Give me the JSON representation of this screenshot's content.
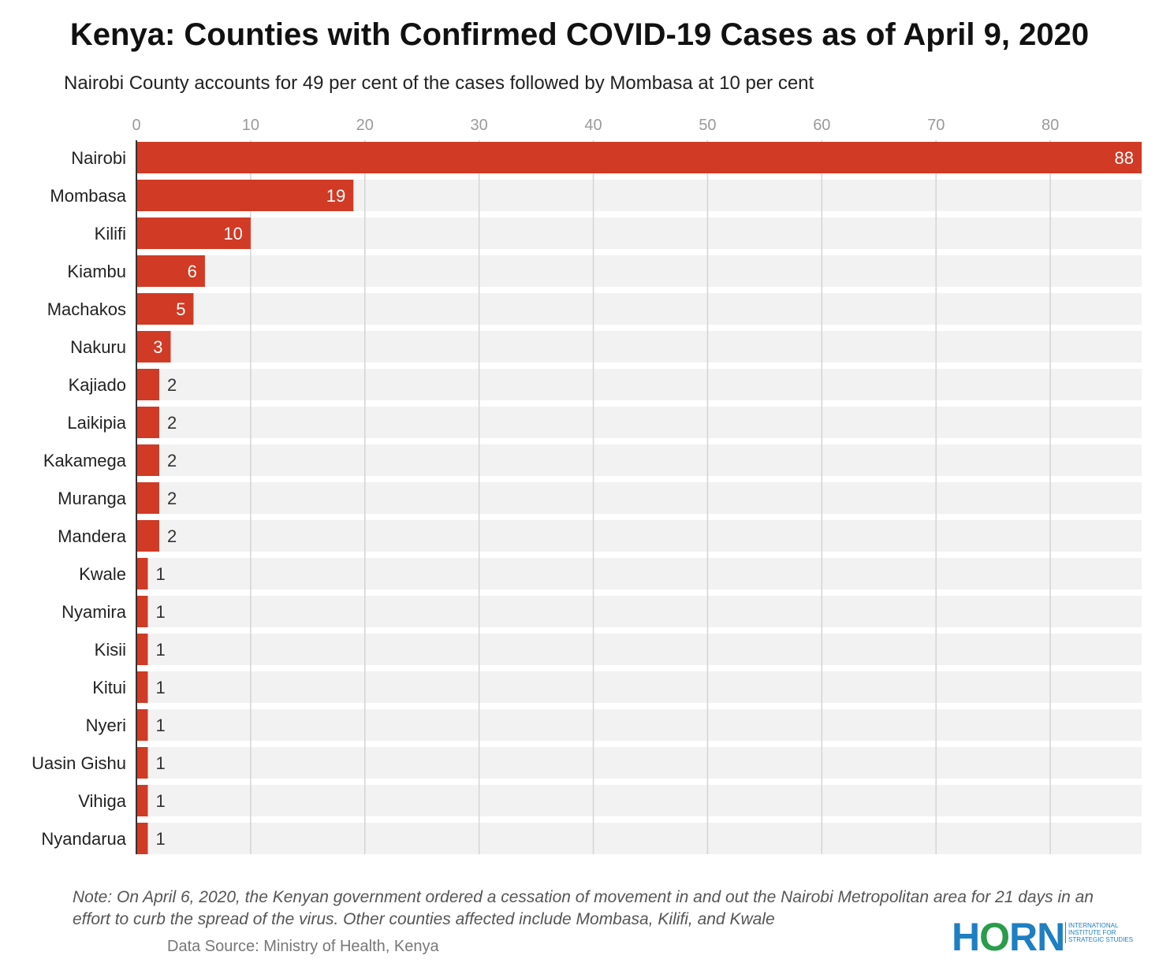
{
  "chart_data": {
    "type": "bar",
    "orientation": "horizontal",
    "title": "Kenya: Counties with Confirmed COVID-19 Cases as of April 9, 2020",
    "subtitle": "Nairobi County accounts for 49 per cent of the cases followed by Mombasa at 10 per cent",
    "categories": [
      "Nairobi",
      "Mombasa",
      "Kilifi",
      "Kiambu",
      "Machakos",
      "Nakuru",
      "Kajiado",
      "Laikipia",
      "Kakamega",
      "Muranga",
      "Mandera",
      "Kwale",
      "Nyamira",
      "Kisii",
      "Kitui",
      "Nyeri",
      "Uasin Gishu",
      "Vihiga",
      "Nyandarua"
    ],
    "values": [
      88,
      19,
      10,
      6,
      5,
      3,
      2,
      2,
      2,
      2,
      2,
      1,
      1,
      1,
      1,
      1,
      1,
      1,
      1
    ],
    "xticks": [
      "0",
      "10",
      "20",
      "30",
      "40",
      "50",
      "60",
      "70",
      "80"
    ],
    "xlim": [
      0,
      88
    ],
    "grid": true,
    "bar_color": "#d13a24",
    "track_color": "#f2f2f2",
    "grid_color": "#d4d4d4"
  },
  "note": "Note: On April 6, 2020, the Kenyan government ordered a cessation of movement in and out the Nairobi Metropolitan area for 21 days in an effort to curb the spread of the virus. Other counties affected include Mombasa, Kilifi, and Kwale",
  "source": "Data Source: Ministry of Health, Kenya",
  "logo": {
    "word": "HORN",
    "tagline": "INTERNATIONAL INSTITUTE FOR STRATEGIC STUDIES"
  }
}
